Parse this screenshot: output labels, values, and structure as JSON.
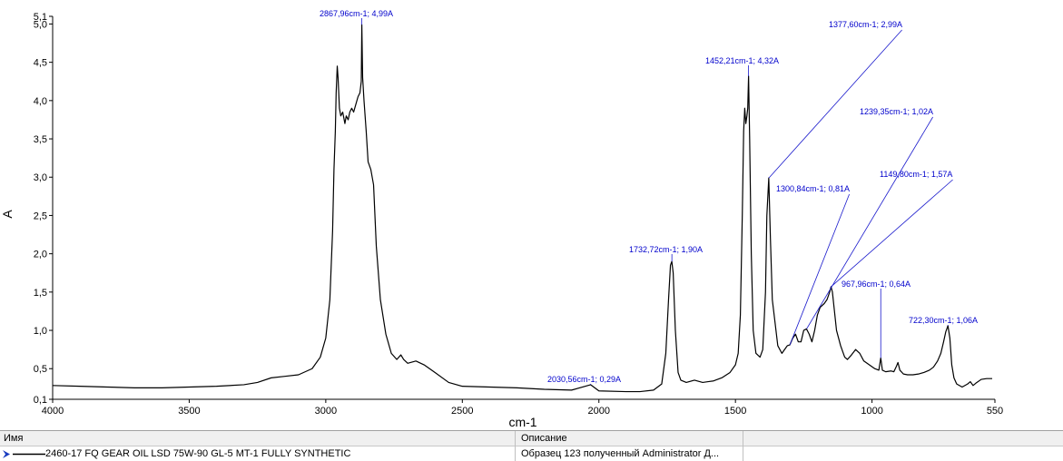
{
  "chart_data": {
    "type": "line",
    "xlabel": "cm-1",
    "ylabel": "A",
    "xlim": [
      4000,
      550
    ],
    "ylim": [
      0.1,
      5.1
    ],
    "x_ticks": [
      4000,
      3500,
      3000,
      2500,
      2000,
      1500,
      1000,
      550
    ],
    "x_tick_labels": [
      "4000",
      "3500",
      "3000",
      "2500",
      "2000",
      "1500",
      "1000",
      "550"
    ],
    "y_ticks": [
      0.1,
      0.5,
      1.0,
      1.5,
      2.0,
      2.5,
      3.0,
      3.5,
      4.0,
      4.5,
      5.0,
      5.1
    ],
    "y_tick_labels": [
      "0,1",
      "0,5",
      "1,0",
      "1,5",
      "2,0",
      "2,5",
      "3,0",
      "3,5",
      "4,0",
      "4,5",
      "5,0",
      "5,1"
    ],
    "series": [
      {
        "color": "#000000",
        "points": [
          [
            4000,
            0.28
          ],
          [
            3900,
            0.27
          ],
          [
            3800,
            0.26
          ],
          [
            3700,
            0.25
          ],
          [
            3600,
            0.25
          ],
          [
            3500,
            0.26
          ],
          [
            3400,
            0.27
          ],
          [
            3300,
            0.29
          ],
          [
            3250,
            0.32
          ],
          [
            3200,
            0.38
          ],
          [
            3150,
            0.4
          ],
          [
            3100,
            0.42
          ],
          [
            3050,
            0.5
          ],
          [
            3020,
            0.65
          ],
          [
            3000,
            0.9
          ],
          [
            2985,
            1.4
          ],
          [
            2975,
            2.3
          ],
          [
            2970,
            3.1
          ],
          [
            2965,
            3.6
          ],
          [
            2962,
            4.1
          ],
          [
            2958,
            4.45
          ],
          [
            2955,
            4.3
          ],
          [
            2950,
            3.9
          ],
          [
            2945,
            3.8
          ],
          [
            2938,
            3.85
          ],
          [
            2930,
            3.7
          ],
          [
            2925,
            3.8
          ],
          [
            2918,
            3.75
          ],
          [
            2912,
            3.85
          ],
          [
            2905,
            3.9
          ],
          [
            2898,
            3.85
          ],
          [
            2890,
            3.95
          ],
          [
            2882,
            4.05
          ],
          [
            2875,
            4.1
          ],
          [
            2870,
            4.25
          ],
          [
            2868,
            4.99
          ],
          [
            2865,
            4.3
          ],
          [
            2860,
            4.0
          ],
          [
            2852,
            3.6
          ],
          [
            2845,
            3.2
          ],
          [
            2835,
            3.1
          ],
          [
            2825,
            2.9
          ],
          [
            2815,
            2.1
          ],
          [
            2800,
            1.4
          ],
          [
            2780,
            0.95
          ],
          [
            2760,
            0.7
          ],
          [
            2740,
            0.62
          ],
          [
            2725,
            0.68
          ],
          [
            2715,
            0.62
          ],
          [
            2700,
            0.57
          ],
          [
            2670,
            0.6
          ],
          [
            2640,
            0.55
          ],
          [
            2600,
            0.45
          ],
          [
            2550,
            0.32
          ],
          [
            2500,
            0.27
          ],
          [
            2400,
            0.26
          ],
          [
            2300,
            0.25
          ],
          [
            2200,
            0.23
          ],
          [
            2100,
            0.22
          ],
          [
            2030,
            0.29
          ],
          [
            2000,
            0.21
          ],
          [
            1900,
            0.2
          ],
          [
            1850,
            0.2
          ],
          [
            1800,
            0.22
          ],
          [
            1770,
            0.3
          ],
          [
            1755,
            0.7
          ],
          [
            1745,
            1.4
          ],
          [
            1738,
            1.85
          ],
          [
            1733,
            1.9
          ],
          [
            1728,
            1.75
          ],
          [
            1720,
            1.0
          ],
          [
            1710,
            0.45
          ],
          [
            1700,
            0.35
          ],
          [
            1680,
            0.32
          ],
          [
            1650,
            0.35
          ],
          [
            1620,
            0.32
          ],
          [
            1600,
            0.33
          ],
          [
            1580,
            0.34
          ],
          [
            1550,
            0.38
          ],
          [
            1520,
            0.45
          ],
          [
            1500,
            0.55
          ],
          [
            1490,
            0.7
          ],
          [
            1482,
            1.2
          ],
          [
            1475,
            2.5
          ],
          [
            1470,
            3.6
          ],
          [
            1466,
            3.9
          ],
          [
            1462,
            3.7
          ],
          [
            1458,
            3.8
          ],
          [
            1455,
            3.9
          ],
          [
            1452,
            4.32
          ],
          [
            1448,
            3.5
          ],
          [
            1442,
            2.0
          ],
          [
            1435,
            1.0
          ],
          [
            1425,
            0.7
          ],
          [
            1410,
            0.65
          ],
          [
            1400,
            0.75
          ],
          [
            1390,
            1.5
          ],
          [
            1385,
            2.5
          ],
          [
            1378,
            2.99
          ],
          [
            1372,
            2.2
          ],
          [
            1365,
            1.4
          ],
          [
            1355,
            1.1
          ],
          [
            1345,
            0.8
          ],
          [
            1330,
            0.7
          ],
          [
            1320,
            0.75
          ],
          [
            1310,
            0.8
          ],
          [
            1301,
            0.81
          ],
          [
            1290,
            0.9
          ],
          [
            1280,
            0.95
          ],
          [
            1270,
            0.85
          ],
          [
            1260,
            0.85
          ],
          [
            1250,
            1.0
          ],
          [
            1240,
            1.02
          ],
          [
            1230,
            0.95
          ],
          [
            1220,
            0.85
          ],
          [
            1210,
            1.0
          ],
          [
            1200,
            1.2
          ],
          [
            1190,
            1.3
          ],
          [
            1175,
            1.35
          ],
          [
            1165,
            1.4
          ],
          [
            1155,
            1.5
          ],
          [
            1150,
            1.57
          ],
          [
            1145,
            1.5
          ],
          [
            1130,
            1.0
          ],
          [
            1115,
            0.8
          ],
          [
            1100,
            0.65
          ],
          [
            1090,
            0.62
          ],
          [
            1075,
            0.68
          ],
          [
            1060,
            0.75
          ],
          [
            1045,
            0.7
          ],
          [
            1030,
            0.6
          ],
          [
            1010,
            0.55
          ],
          [
            990,
            0.5
          ],
          [
            975,
            0.48
          ],
          [
            968,
            0.64
          ],
          [
            962,
            0.48
          ],
          [
            950,
            0.46
          ],
          [
            930,
            0.47
          ],
          [
            920,
            0.46
          ],
          [
            912,
            0.52
          ],
          [
            905,
            0.58
          ],
          [
            898,
            0.48
          ],
          [
            885,
            0.43
          ],
          [
            870,
            0.42
          ],
          [
            850,
            0.42
          ],
          [
            830,
            0.43
          ],
          [
            810,
            0.45
          ],
          [
            790,
            0.48
          ],
          [
            775,
            0.52
          ],
          [
            760,
            0.6
          ],
          [
            748,
            0.7
          ],
          [
            738,
            0.85
          ],
          [
            730,
            0.98
          ],
          [
            722,
            1.06
          ],
          [
            715,
            0.9
          ],
          [
            708,
            0.55
          ],
          [
            700,
            0.38
          ],
          [
            690,
            0.3
          ],
          [
            670,
            0.26
          ],
          [
            650,
            0.3
          ],
          [
            640,
            0.33
          ],
          [
            630,
            0.28
          ],
          [
            620,
            0.31
          ],
          [
            600,
            0.36
          ],
          [
            580,
            0.37
          ],
          [
            560,
            0.37
          ]
        ]
      }
    ],
    "annotations": [
      {
        "text": "2867,96cm-1; 4,99A",
        "x": 2867.96,
        "y": 4.99
      },
      {
        "text": "1452,21cm-1; 4,32A",
        "x": 1452.21,
        "y": 4.32
      },
      {
        "text": "1377,60cm-1; 2,99A",
        "x": 1377.6,
        "y": 2.99
      },
      {
        "text": "1239,35cm-1; 1,02A",
        "x": 1239.35,
        "y": 1.02
      },
      {
        "text": "1300,84cm-1; 0,81A",
        "x": 1300.84,
        "y": 0.81
      },
      {
        "text": "1149,80cm-1; 1,57A",
        "x": 1149.8,
        "y": 1.57
      },
      {
        "text": "1732,72cm-1; 1,90A",
        "x": 1732.72,
        "y": 1.9
      },
      {
        "text": "967,96cm-1; 0,64A",
        "x": 967.96,
        "y": 0.64
      },
      {
        "text": "722,30cm-1; 1,06A",
        "x": 722.3,
        "y": 1.06
      },
      {
        "text": "2030,56cm-1; 0,29A",
        "x": 2030.56,
        "y": 0.29
      }
    ]
  },
  "legend": {
    "header_name": "Имя",
    "header_desc": "Описание",
    "rows": [
      {
        "name": "2460-17 FQ GEAR OIL LSD 75W-90 GL-5 MT-1 FULLY SYNTHETIC",
        "desc": "Образец 123 полученный Administrator Д...",
        "color": "#000000"
      }
    ]
  }
}
